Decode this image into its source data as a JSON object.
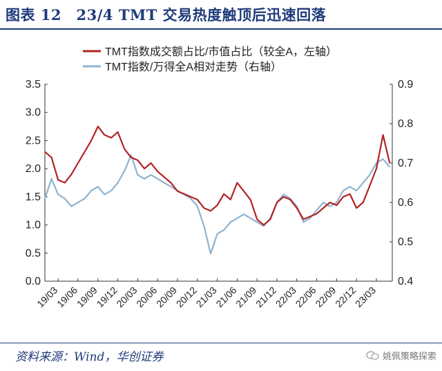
{
  "header": {
    "title": "图表 12　23/4 TMT 交易热度触顶后迅速回落"
  },
  "footer": {
    "source": "资料来源：Wind，华创证券",
    "watermark": "姚佩策略探索"
  },
  "colors": {
    "left_series": "#b22222",
    "right_series": "#8fb3d0",
    "title": "#1f3a7a"
  },
  "chart_data": {
    "type": "line",
    "legend_position": "top-right",
    "grid": false,
    "x_ticks": [
      "19/03",
      "19/06",
      "19/09",
      "19/12",
      "20/03",
      "20/06",
      "20/09",
      "20/12",
      "21/03",
      "21/06",
      "21/09",
      "21/12",
      "22/03",
      "22/06",
      "22/09",
      "22/12",
      "23/03"
    ],
    "y_left": {
      "lim": [
        0,
        3.5
      ],
      "ticks": [
        "0.0",
        "0.5",
        "1.0",
        "1.5",
        "2.0",
        "2.5",
        "3.0",
        "3.5"
      ]
    },
    "y_right": {
      "lim": [
        0.4,
        0.9
      ],
      "ticks": [
        "0.4",
        "0.5",
        "0.6",
        "0.7",
        "0.8",
        "0.9"
      ]
    },
    "series": [
      {
        "name": "TMT指数成交额占比/市值占比（较全A，左轴）",
        "axis": "left",
        "points": [
          [
            "19/01",
            2.3
          ],
          [
            "19/02",
            2.2
          ],
          [
            "19/03",
            1.8
          ],
          [
            "19/04",
            1.75
          ],
          [
            "19/05",
            1.9
          ],
          [
            "19/06",
            2.1
          ],
          [
            "19/07",
            2.3
          ],
          [
            "19/08",
            2.5
          ],
          [
            "19/09",
            2.75
          ],
          [
            "19/10",
            2.6
          ],
          [
            "19/11",
            2.55
          ],
          [
            "19/12",
            2.65
          ],
          [
            "20/01",
            2.35
          ],
          [
            "20/02",
            2.2
          ],
          [
            "20/03",
            2.15
          ],
          [
            "20/04",
            2.0
          ],
          [
            "20/05",
            2.1
          ],
          [
            "20/06",
            1.95
          ],
          [
            "20/07",
            1.85
          ],
          [
            "20/08",
            1.75
          ],
          [
            "20/09",
            1.6
          ],
          [
            "20/10",
            1.55
          ],
          [
            "20/11",
            1.5
          ],
          [
            "20/12",
            1.45
          ],
          [
            "21/01",
            1.3
          ],
          [
            "21/02",
            1.25
          ],
          [
            "21/03",
            1.35
          ],
          [
            "21/04",
            1.55
          ],
          [
            "21/05",
            1.45
          ],
          [
            "21/06",
            1.75
          ],
          [
            "21/07",
            1.6
          ],
          [
            "21/08",
            1.45
          ],
          [
            "21/09",
            1.1
          ],
          [
            "21/10",
            1.0
          ],
          [
            "21/11",
            1.1
          ],
          [
            "21/12",
            1.4
          ],
          [
            "22/01",
            1.5
          ],
          [
            "22/02",
            1.45
          ],
          [
            "22/03",
            1.3
          ],
          [
            "22/04",
            1.1
          ],
          [
            "22/05",
            1.15
          ],
          [
            "22/06",
            1.2
          ],
          [
            "22/07",
            1.3
          ],
          [
            "22/08",
            1.4
          ],
          [
            "22/09",
            1.35
          ],
          [
            "22/10",
            1.5
          ],
          [
            "22/11",
            1.55
          ],
          [
            "22/12",
            1.3
          ],
          [
            "23/01",
            1.4
          ],
          [
            "23/02",
            1.7
          ],
          [
            "23/03",
            2.0
          ],
          [
            "23/04",
            2.6
          ],
          [
            "23/05",
            2.1
          ]
        ]
      },
      {
        "name": "TMT指数/万得全A相对走势（右轴）",
        "axis": "right",
        "points": [
          [
            "19/01",
            0.61
          ],
          [
            "19/02",
            0.66
          ],
          [
            "19/03",
            0.62
          ],
          [
            "19/04",
            0.61
          ],
          [
            "19/05",
            0.59
          ],
          [
            "19/06",
            0.6
          ],
          [
            "19/07",
            0.61
          ],
          [
            "19/08",
            0.63
          ],
          [
            "19/09",
            0.64
          ],
          [
            "19/10",
            0.62
          ],
          [
            "19/11",
            0.63
          ],
          [
            "19/12",
            0.65
          ],
          [
            "20/01",
            0.68
          ],
          [
            "20/02",
            0.72
          ],
          [
            "20/03",
            0.67
          ],
          [
            "20/04",
            0.66
          ],
          [
            "20/05",
            0.67
          ],
          [
            "20/06",
            0.66
          ],
          [
            "20/07",
            0.65
          ],
          [
            "20/08",
            0.64
          ],
          [
            "20/09",
            0.63
          ],
          [
            "20/10",
            0.62
          ],
          [
            "20/11",
            0.61
          ],
          [
            "20/12",
            0.59
          ],
          [
            "21/01",
            0.54
          ],
          [
            "21/02",
            0.47
          ],
          [
            "21/03",
            0.52
          ],
          [
            "21/04",
            0.53
          ],
          [
            "21/05",
            0.55
          ],
          [
            "21/06",
            0.56
          ],
          [
            "21/07",
            0.57
          ],
          [
            "21/08",
            0.56
          ],
          [
            "21/09",
            0.55
          ],
          [
            "21/10",
            0.54
          ],
          [
            "21/11",
            0.56
          ],
          [
            "21/12",
            0.6
          ],
          [
            "22/01",
            0.62
          ],
          [
            "22/02",
            0.61
          ],
          [
            "22/03",
            0.59
          ],
          [
            "22/04",
            0.55
          ],
          [
            "22/05",
            0.56
          ],
          [
            "22/06",
            0.58
          ],
          [
            "22/07",
            0.6
          ],
          [
            "22/08",
            0.59
          ],
          [
            "22/09",
            0.6
          ],
          [
            "22/10",
            0.63
          ],
          [
            "22/11",
            0.64
          ],
          [
            "22/12",
            0.63
          ],
          [
            "23/01",
            0.65
          ],
          [
            "23/02",
            0.67
          ],
          [
            "23/03",
            0.7
          ],
          [
            "23/04",
            0.71
          ],
          [
            "23/05",
            0.69
          ]
        ]
      }
    ]
  }
}
